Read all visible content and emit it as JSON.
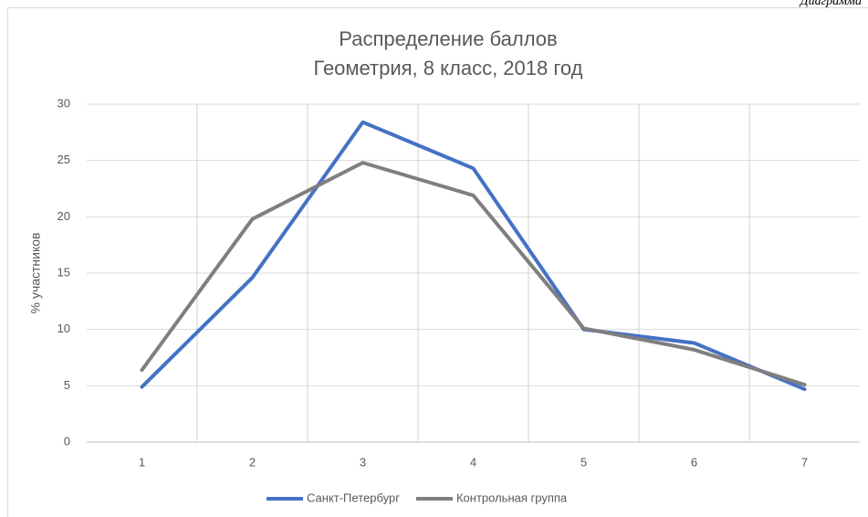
{
  "chart_data": {
    "type": "line",
    "annotation": "Диаграмма",
    "title": "Распределение баллов",
    "subtitle": "Геометрия, 8 класс, 2018 год",
    "y_label": "% участников",
    "categories": [
      "1",
      "2",
      "3",
      "4",
      "5",
      "6",
      "7"
    ],
    "series": [
      {
        "name": "Санкт-Петербург",
        "color": "#4472c4",
        "values": [
          4.9,
          14.6,
          28.4,
          24.3,
          10.0,
          8.8,
          4.7
        ]
      },
      {
        "name": "Контрольная группа",
        "color": "#7f7f7f",
        "values": [
          6.4,
          19.8,
          24.8,
          21.9,
          10.1,
          8.2,
          5.1
        ]
      }
    ],
    "ylim": [
      0,
      30
    ],
    "yticks": [
      0,
      5,
      10,
      15,
      20,
      25,
      30
    ],
    "grid": true,
    "legend": "bottom"
  }
}
